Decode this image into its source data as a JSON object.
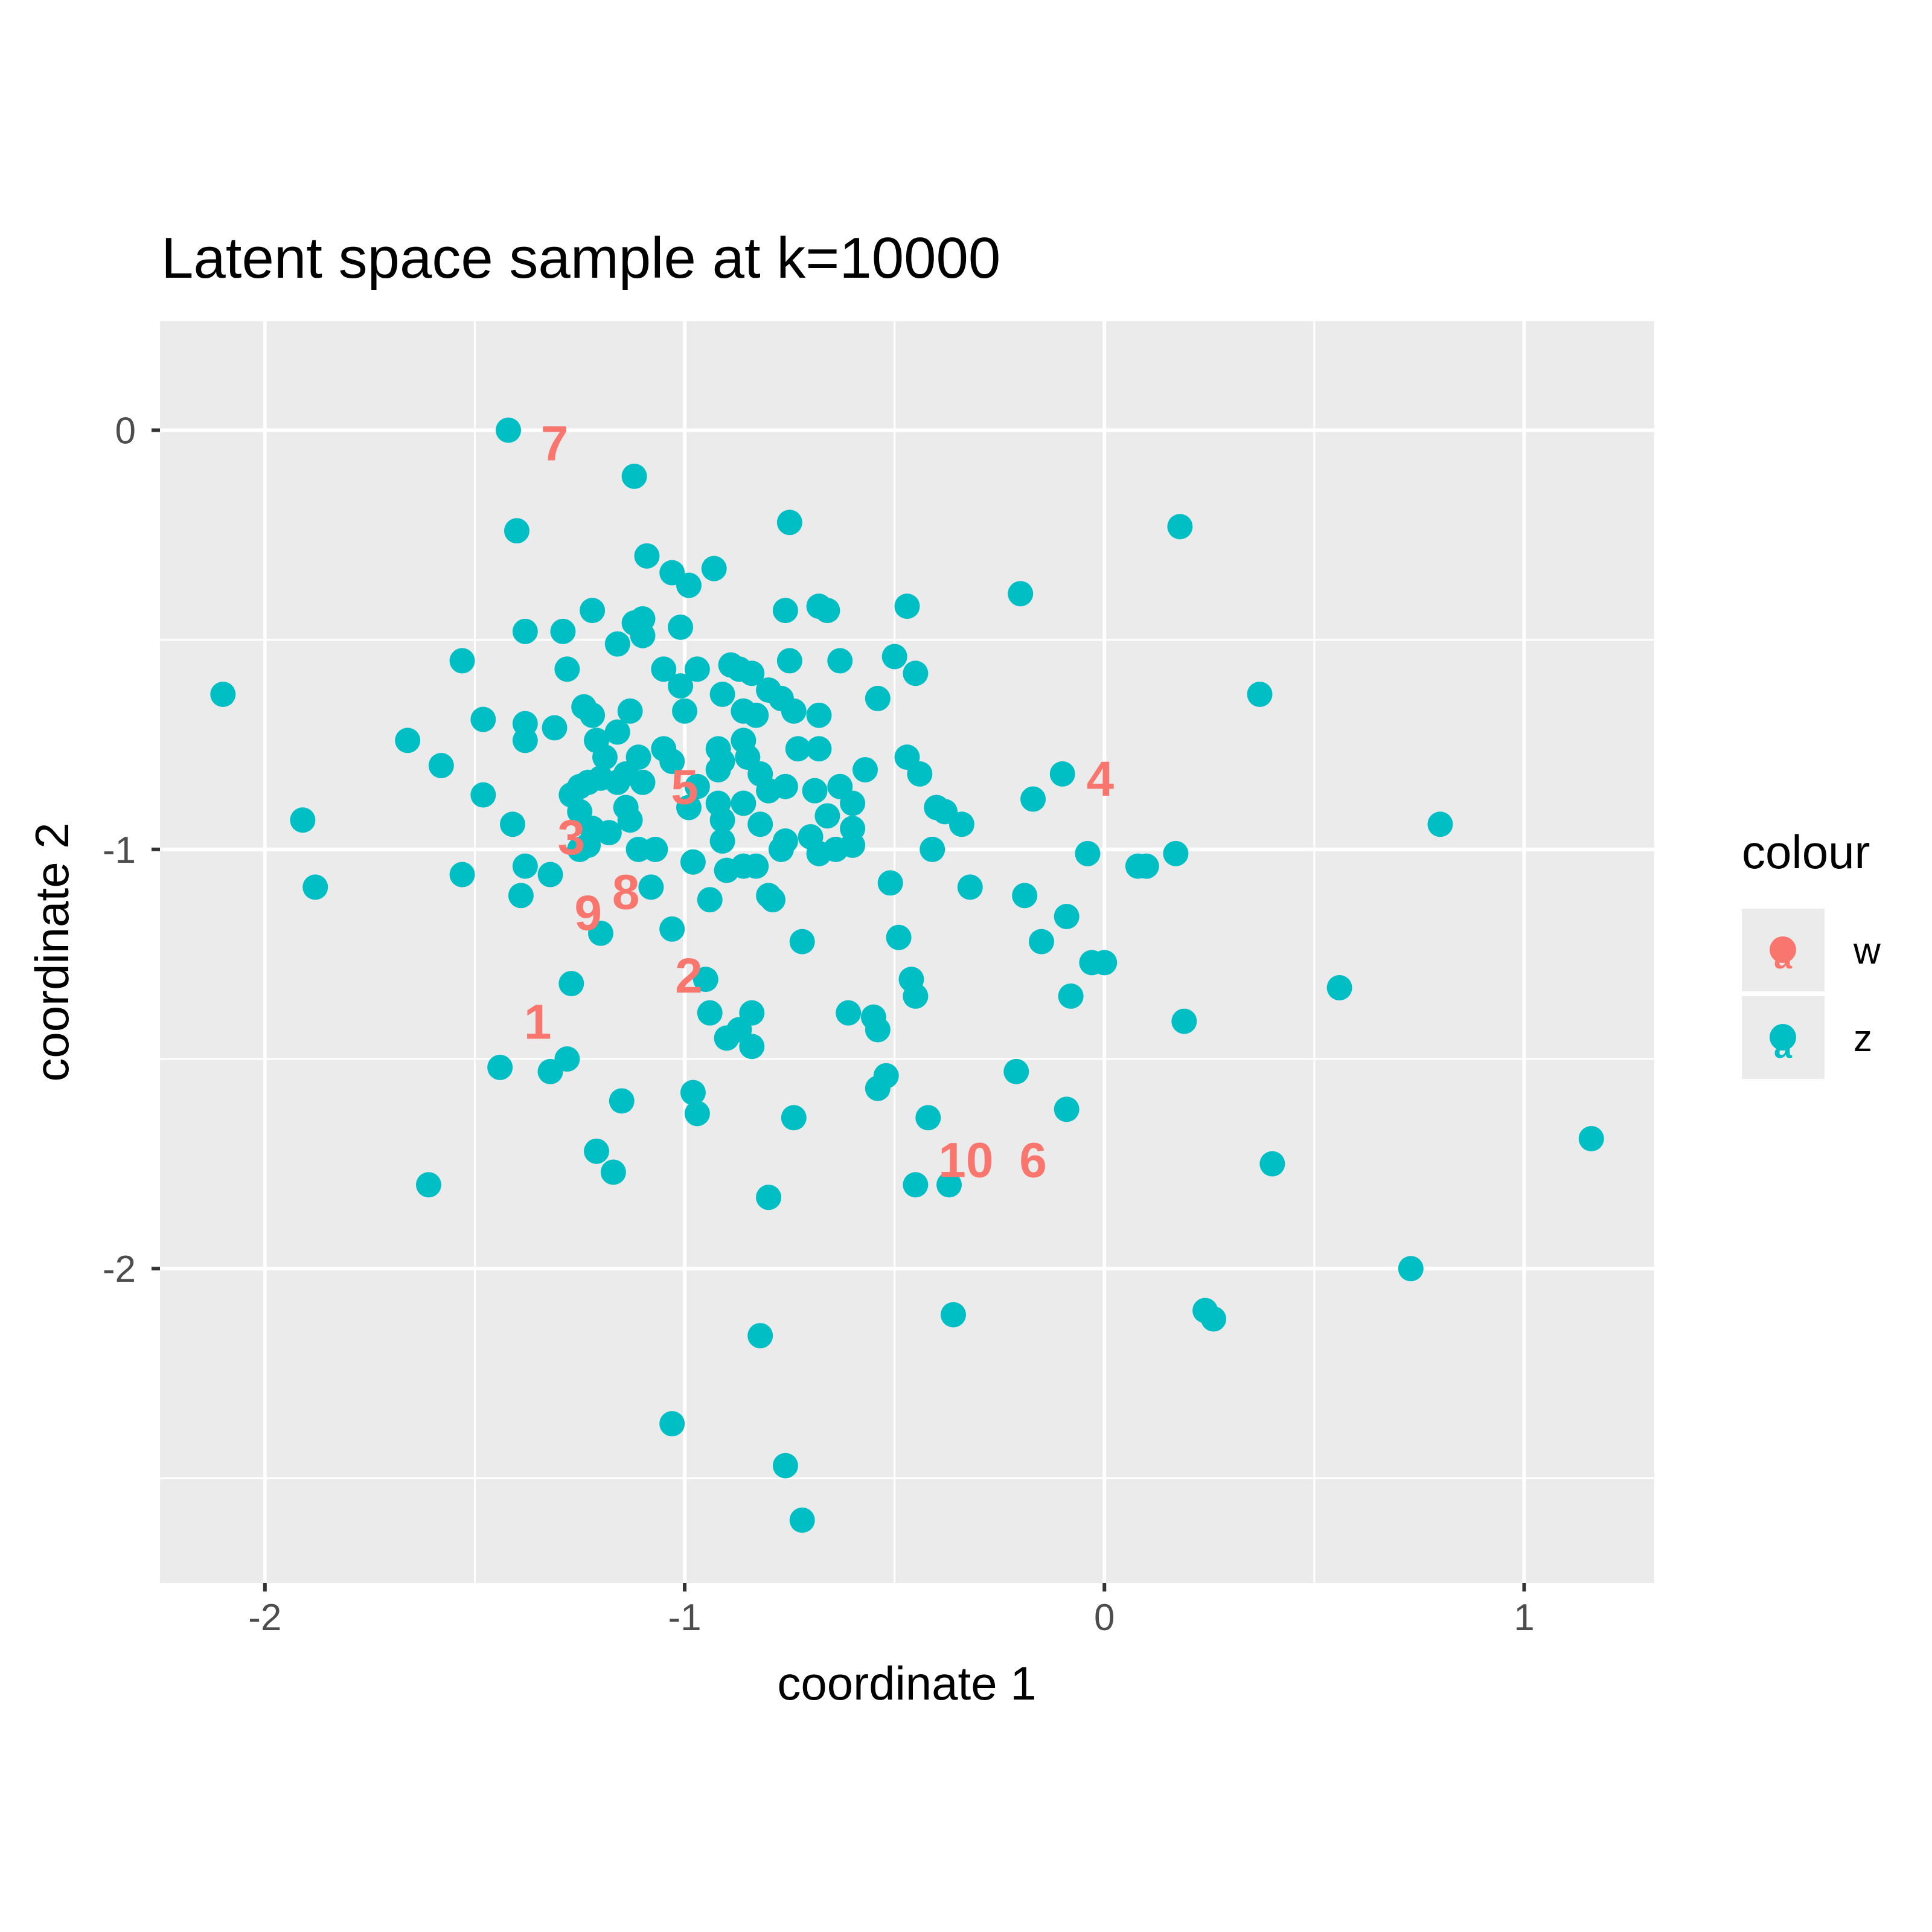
{
  "chart_data": {
    "type": "scatter",
    "title": "Latent space sample at k=10000",
    "xlabel": "coordinate 1",
    "ylabel": "coordinate 2",
    "xlim": [
      -2.25,
      1.31
    ],
    "ylim": [
      -2.75,
      0.26
    ],
    "x_ticks": [
      -2,
      -1,
      0,
      1
    ],
    "x_tick_labels": [
      "-2",
      "-1",
      "0",
      "1"
    ],
    "y_ticks": [
      0,
      -1,
      -2
    ],
    "y_tick_labels": [
      "0",
      "-1",
      "-2"
    ],
    "grid": true,
    "legend": {
      "title": "colour",
      "position": "right",
      "entries": [
        {
          "label": "w",
          "color": "#F8766D"
        },
        {
          "label": "z",
          "color": "#00BFC4"
        }
      ]
    },
    "series": [
      {
        "name": "z",
        "color": "#00BFC4",
        "points": [
          [
            -1.42,
            0.0
          ],
          [
            -1.12,
            -0.11
          ],
          [
            -1.4,
            -0.24
          ],
          [
            -0.75,
            -0.22
          ],
          [
            0.18,
            -0.23
          ],
          [
            -1.09,
            -0.3
          ],
          [
            -0.93,
            -0.33
          ],
          [
            -1.03,
            -0.34
          ],
          [
            -0.99,
            -0.37
          ],
          [
            -0.2,
            -0.39
          ],
          [
            -1.22,
            -0.43
          ],
          [
            -1.12,
            -0.46
          ],
          [
            -1.1,
            -0.45
          ],
          [
            -0.76,
            -0.43
          ],
          [
            -0.68,
            -0.42
          ],
          [
            -0.66,
            -0.43
          ],
          [
            -0.47,
            -0.42
          ],
          [
            -1.38,
            -0.48
          ],
          [
            -1.29,
            -0.48
          ],
          [
            -1.1,
            -0.49
          ],
          [
            -1.01,
            -0.47
          ],
          [
            -1.16,
            -0.51
          ],
          [
            -0.75,
            -0.55
          ],
          [
            -0.63,
            -0.55
          ],
          [
            -0.5,
            -0.54
          ],
          [
            -1.53,
            -0.55
          ],
          [
            -1.28,
            -0.57
          ],
          [
            -1.05,
            -0.57
          ],
          [
            -0.97,
            -0.57
          ],
          [
            -0.89,
            -0.56
          ],
          [
            -0.87,
            -0.57
          ],
          [
            -0.84,
            -0.58
          ],
          [
            -0.45,
            -0.58
          ],
          [
            -2.1,
            -0.63
          ],
          [
            -1.01,
            -0.61
          ],
          [
            -0.91,
            -0.63
          ],
          [
            -0.8,
            -0.62
          ],
          [
            -0.77,
            -0.64
          ],
          [
            -0.54,
            -0.64
          ],
          [
            0.37,
            -0.63
          ],
          [
            -1.24,
            -0.66
          ],
          [
            -1.22,
            -0.68
          ],
          [
            -1.13,
            -0.67
          ],
          [
            -1.0,
            -0.67
          ],
          [
            -0.86,
            -0.67
          ],
          [
            -0.83,
            -0.68
          ],
          [
            -0.74,
            -0.67
          ],
          [
            -0.68,
            -0.68
          ],
          [
            -1.48,
            -0.69
          ],
          [
            -1.38,
            -0.7
          ],
          [
            -1.31,
            -0.71
          ],
          [
            -1.66,
            -0.74
          ],
          [
            -1.38,
            -0.74
          ],
          [
            -1.21,
            -0.74
          ],
          [
            -1.16,
            -0.72
          ],
          [
            -0.86,
            -0.74
          ],
          [
            -0.92,
            -0.76
          ],
          [
            -1.05,
            -0.76
          ],
          [
            -0.73,
            -0.76
          ],
          [
            -0.68,
            -0.76
          ],
          [
            -1.19,
            -0.78
          ],
          [
            -1.11,
            -0.78
          ],
          [
            -1.03,
            -0.79
          ],
          [
            -0.91,
            -0.79
          ],
          [
            -0.85,
            -0.78
          ],
          [
            -0.47,
            -0.78
          ],
          [
            -1.58,
            -0.8
          ],
          [
            -0.92,
            -0.81
          ],
          [
            -0.57,
            -0.81
          ],
          [
            -0.44,
            -0.82
          ],
          [
            -0.1,
            -0.82
          ],
          [
            -1.2,
            -0.83
          ],
          [
            -1.14,
            -0.82
          ],
          [
            -1.1,
            -0.84
          ],
          [
            -0.82,
            -0.82
          ],
          [
            -1.25,
            -0.85
          ],
          [
            -1.23,
            -0.84
          ],
          [
            -1.16,
            -0.84
          ],
          [
            -0.97,
            -0.85
          ],
          [
            -0.8,
            -0.86
          ],
          [
            -0.76,
            -0.85
          ],
          [
            -0.69,
            -0.86
          ],
          [
            -0.63,
            -0.85
          ],
          [
            -1.48,
            -0.87
          ],
          [
            -1.27,
            -0.87
          ],
          [
            -1.14,
            -0.9
          ],
          [
            -0.92,
            -0.89
          ],
          [
            -0.86,
            -0.89
          ],
          [
            -0.6,
            -0.89
          ],
          [
            -0.4,
            -0.9
          ],
          [
            -0.38,
            -0.91
          ],
          [
            -0.17,
            -0.88
          ],
          [
            -1.91,
            -0.93
          ],
          [
            -1.41,
            -0.94
          ],
          [
            -1.25,
            -0.91
          ],
          [
            -1.13,
            -0.93
          ],
          [
            -0.99,
            -0.9
          ],
          [
            -0.91,
            -0.93
          ],
          [
            -0.82,
            -0.94
          ],
          [
            -0.66,
            -0.92
          ],
          [
            -0.6,
            -0.95
          ],
          [
            -0.34,
            -0.94
          ],
          [
            0.8,
            -0.94
          ],
          [
            -1.22,
            -0.95
          ],
          [
            -1.18,
            -0.96
          ],
          [
            -0.91,
            -0.98
          ],
          [
            -0.76,
            -0.98
          ],
          [
            -0.7,
            -0.97
          ],
          [
            -0.77,
            -1.0
          ],
          [
            -0.6,
            -0.99
          ],
          [
            -0.64,
            -1.0
          ],
          [
            -1.25,
            -1.0
          ],
          [
            -1.23,
            -0.99
          ],
          [
            -1.11,
            -1.0
          ],
          [
            -1.07,
            -1.0
          ],
          [
            -0.68,
            -1.01
          ],
          [
            -0.41,
            -1.0
          ],
          [
            -0.04,
            -1.01
          ],
          [
            0.17,
            -1.01
          ],
          [
            -1.38,
            -1.04
          ],
          [
            -0.98,
            -1.03
          ],
          [
            -0.9,
            -1.05
          ],
          [
            -0.86,
            -1.04
          ],
          [
            -0.83,
            -1.04
          ],
          [
            0.08,
            -1.04
          ],
          [
            0.1,
            -1.04
          ],
          [
            -1.53,
            -1.06
          ],
          [
            -1.32,
            -1.06
          ],
          [
            -1.88,
            -1.09
          ],
          [
            -1.08,
            -1.09
          ],
          [
            -0.51,
            -1.08
          ],
          [
            -0.32,
            -1.09
          ],
          [
            -1.39,
            -1.11
          ],
          [
            -0.94,
            -1.12
          ],
          [
            -0.8,
            -1.11
          ],
          [
            -0.79,
            -1.12
          ],
          [
            -0.19,
            -1.11
          ],
          [
            -1.2,
            -1.2
          ],
          [
            -1.03,
            -1.19
          ],
          [
            -0.09,
            -1.16
          ],
          [
            -0.72,
            -1.22
          ],
          [
            -0.49,
            -1.21
          ],
          [
            -0.15,
            -1.22
          ],
          [
            -0.03,
            -1.27
          ],
          [
            0.0,
            -1.27
          ],
          [
            -1.27,
            -1.32
          ],
          [
            -0.95,
            -1.31
          ],
          [
            -0.46,
            -1.31
          ],
          [
            -0.45,
            -1.35
          ],
          [
            -0.08,
            -1.35
          ],
          [
            0.56,
            -1.33
          ],
          [
            -0.94,
            -1.39
          ],
          [
            -0.84,
            -1.39
          ],
          [
            -0.61,
            -1.39
          ],
          [
            -0.55,
            -1.4
          ],
          [
            -0.54,
            -1.43
          ],
          [
            0.19,
            -1.41
          ],
          [
            -0.87,
            -1.43
          ],
          [
            -0.9,
            -1.45
          ],
          [
            -0.84,
            -1.47
          ],
          [
            -1.28,
            -1.5
          ],
          [
            -1.44,
            -1.52
          ],
          [
            -1.32,
            -1.53
          ],
          [
            -0.52,
            -1.54
          ],
          [
            -0.54,
            -1.57
          ],
          [
            -0.21,
            -1.53
          ],
          [
            -1.15,
            -1.6
          ],
          [
            -0.98,
            -1.58
          ],
          [
            -0.97,
            -1.63
          ],
          [
            -0.74,
            -1.64
          ],
          [
            -0.42,
            -1.64
          ],
          [
            -0.09,
            -1.62
          ],
          [
            1.16,
            -1.69
          ],
          [
            -1.21,
            -1.72
          ],
          [
            -1.17,
            -1.77
          ],
          [
            0.4,
            -1.75
          ],
          [
            -1.61,
            -1.8
          ],
          [
            -0.45,
            -1.8
          ],
          [
            -0.37,
            -1.8
          ],
          [
            -0.8,
            -1.83
          ],
          [
            0.73,
            -2.0
          ],
          [
            -0.36,
            -2.11
          ],
          [
            0.24,
            -2.1
          ],
          [
            0.26,
            -2.12
          ],
          [
            -0.82,
            -2.16
          ],
          [
            -1.03,
            -2.37
          ],
          [
            -0.76,
            -2.47
          ],
          [
            -0.72,
            -2.6
          ]
        ]
      },
      {
        "name": "w",
        "color": "#F8766D",
        "points": [
          {
            "x": -1.35,
            "y": -1.41,
            "label": "1"
          },
          {
            "x": -0.99,
            "y": -1.3,
            "label": "2"
          },
          {
            "x": -1.27,
            "y": -0.97,
            "label": "3"
          },
          {
            "x": -0.01,
            "y": -0.83,
            "label": "4"
          },
          {
            "x": -1.0,
            "y": -0.85,
            "label": "5"
          },
          {
            "x": -0.17,
            "y": -1.74,
            "label": "6"
          },
          {
            "x": -1.31,
            "y": -0.03,
            "label": "7"
          },
          {
            "x": -1.14,
            "y": -1.1,
            "label": "8"
          },
          {
            "x": -1.23,
            "y": -1.15,
            "label": "9"
          },
          {
            "x": -0.33,
            "y": -1.74,
            "label": "10"
          }
        ]
      }
    ]
  }
}
